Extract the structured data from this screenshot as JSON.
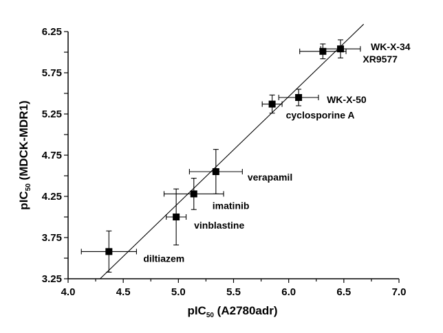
{
  "chart_data": {
    "type": "scatter",
    "xlabel": {
      "main": "pIC",
      "sub": "50",
      "rest": " (A2780adr)"
    },
    "ylabel": {
      "main": "pIC",
      "sub": "50",
      "rest": " (MDCK-MDR1)"
    },
    "xlim": [
      4.0,
      7.0
    ],
    "ylim": [
      3.25,
      6.25
    ],
    "xticks": [
      "4.0",
      "4.5",
      "5.0",
      "5.5",
      "6.0",
      "6.5",
      "7.0"
    ],
    "yticks": [
      "3.25",
      "3.75",
      "4.25",
      "4.75",
      "5.25",
      "5.75",
      "6.25"
    ],
    "grid": false,
    "marker_color": "#000000",
    "points": [
      {
        "label": "diltiazem",
        "x": 4.37,
        "y": 3.58,
        "xerr": 0.25,
        "yerr": 0.25
      },
      {
        "label": "vinblastine",
        "x": 4.98,
        "y": 4.0,
        "xerr": 0.09,
        "yerr": 0.34
      },
      {
        "label": "imatinib",
        "x": 5.14,
        "y": 4.28,
        "xerr": 0.27,
        "yerr": 0.19
      },
      {
        "label": "verapamil",
        "x": 5.34,
        "y": 4.55,
        "xerr": 0.24,
        "yerr": 0.27
      },
      {
        "label": "cyclosporine A",
        "x": 5.85,
        "y": 5.37,
        "xerr": 0.09,
        "yerr": 0.11
      },
      {
        "label": "WK-X-50",
        "x": 6.09,
        "y": 5.45,
        "xerr": 0.18,
        "yerr": 0.1
      },
      {
        "label": "XR9577",
        "x": 6.31,
        "y": 6.01,
        "xerr": 0.21,
        "yerr": 0.09
      },
      {
        "label": "WK-X-34",
        "x": 6.47,
        "y": 6.04,
        "xerr": 0.18,
        "yerr": 0.11
      }
    ],
    "regression_line": {
      "x": [
        4.29,
        6.68
      ],
      "y": [
        3.25,
        6.34
      ]
    }
  }
}
